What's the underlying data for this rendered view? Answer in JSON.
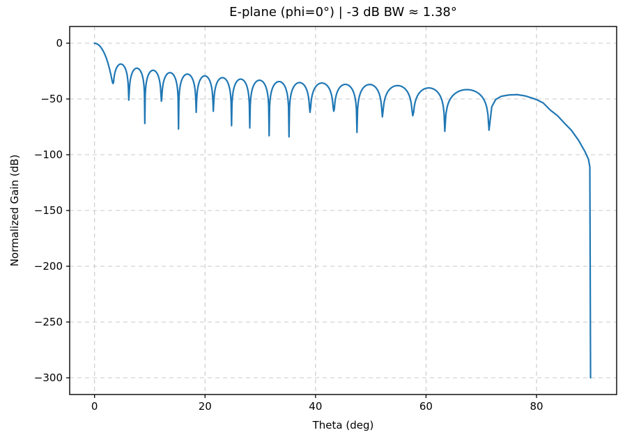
{
  "figure": {
    "kind": "matplotlib-line-plot"
  },
  "chart_data": {
    "type": "line",
    "title": "E-plane (phi=0°)  |  -3 dB BW ≈ 1.38°",
    "xlabel": "Theta (deg)",
    "ylabel": "Normalized Gain (dB)",
    "xlim": [
      -4.5,
      94.5
    ],
    "ylim": [
      -315,
      15
    ],
    "xticks": [
      0,
      20,
      40,
      60,
      80
    ],
    "yticks": [
      0,
      -50,
      -100,
      -150,
      -200,
      -250,
      -300
    ],
    "grid": true,
    "grid_style": "dashed",
    "grid_color": "#c8c8c8",
    "axis_color": "#000000",
    "text_color": "#000000",
    "background": "#ffffff",
    "line_color": "#1f77b4",
    "line_width": 2.2,
    "legend": "none",
    "series_name": "normalized-gain-vs-theta",
    "main_lobe_points": [
      [
        0,
        0
      ],
      [
        0.3,
        -0.3
      ],
      [
        0.6,
        -1.0
      ],
      [
        0.9,
        -2.2
      ],
      [
        1.2,
        -4.0
      ],
      [
        1.5,
        -6.4
      ],
      [
        1.8,
        -9.3
      ],
      [
        2.1,
        -12.9
      ],
      [
        2.4,
        -17.3
      ],
      [
        2.7,
        -22.8
      ],
      [
        2.95,
        -28.0
      ],
      [
        3.15,
        -33.0
      ]
    ],
    "null_angles_deg": [
      3.3,
      6.2,
      9.1,
      12.1,
      15.2,
      18.4,
      21.5,
      24.8,
      28.1,
      31.6,
      35.2,
      39.0,
      43.3,
      47.5,
      52.1,
      57.6,
      63.4,
      71.4
    ],
    "null_depths_db": [
      -36,
      -51,
      -72,
      -52,
      -77,
      -62,
      -61,
      -74,
      -76,
      -83,
      -84,
      -62,
      -61,
      -80,
      -66,
      -65,
      -79,
      -78
    ],
    "sidelobe_peaks_db": [
      -18.7,
      -22.4,
      -24.3,
      -26.4,
      -27.7,
      -29.3,
      -30.9,
      -32.2,
      -33.2,
      -34.4,
      -35.3,
      -35.7,
      -36.9,
      -37.0,
      -38.0,
      -40.1,
      -41.6
    ],
    "final_lobe_points": [
      [
        71.9,
        -57
      ],
      [
        72.6,
        -50.5
      ],
      [
        73.6,
        -47.6
      ],
      [
        75.0,
        -46.4
      ],
      [
        76.5,
        -46.1
      ],
      [
        78.0,
        -47.3
      ],
      [
        79.2,
        -49.2
      ],
      [
        80.0,
        -50.6
      ],
      [
        81.2,
        -53.5
      ],
      [
        82.5,
        -60.0
      ],
      [
        83.8,
        -65.0
      ],
      [
        85.0,
        -71.4
      ],
      [
        86.3,
        -78.0
      ],
      [
        87.6,
        -87.0
      ],
      [
        88.8,
        -97.5
      ],
      [
        89.4,
        -104.0
      ],
      [
        89.65,
        -111.0
      ],
      [
        89.78,
        -300.0
      ]
    ]
  }
}
